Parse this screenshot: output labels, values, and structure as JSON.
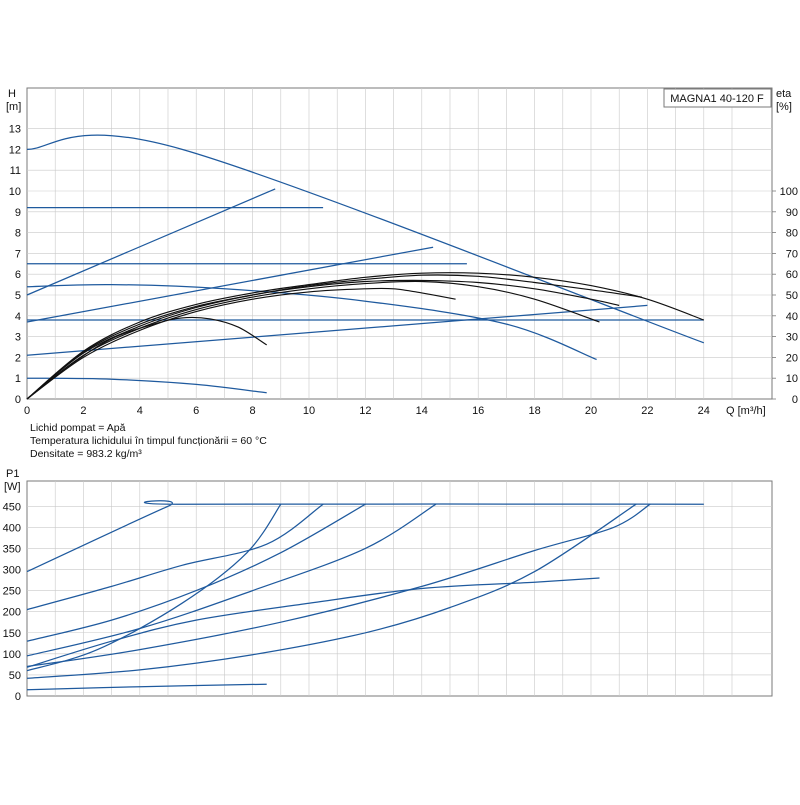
{
  "title": "MAGNA1 40-120 F",
  "notes": [
    "Lichid pompat = Apă",
    "Temperatura lichidului în timpul funcționării = 60 °C",
    "Densitate = 983.2 kg/m³"
  ],
  "colors": {
    "blue": "#1f5a9e",
    "black": "#111111",
    "grid": "#c9c9c9",
    "frame": "#7a7a7a"
  },
  "chart_data": [
    {
      "id": "head",
      "type": "line",
      "x_unit_label": "Q [m³/h]",
      "y_label_line1": "H",
      "y_label_line2": "[m]",
      "y2_label_line1": "eta",
      "y2_label_line2": "[%]",
      "xlim": [
        0,
        26
      ],
      "ylim": [
        0,
        13.5
      ],
      "x_ticks": [
        0,
        2,
        4,
        6,
        8,
        10,
        12,
        14,
        16,
        18,
        20,
        22,
        24
      ],
      "y_ticks": [
        0,
        1,
        2,
        3,
        4,
        5,
        6,
        7,
        8,
        9,
        10,
        11,
        12,
        13
      ],
      "y2_ticks": [
        0,
        10,
        20,
        30,
        40,
        50,
        60,
        70,
        80,
        90,
        100
      ],
      "y2_lim": [
        0,
        135
      ],
      "series": [
        {
          "kind": "head",
          "color": "blue",
          "points": [
            [
              0,
              12
            ],
            [
              5.5,
              12
            ],
            [
              24,
              2.7
            ]
          ]
        },
        {
          "kind": "head",
          "color": "blue",
          "points": [
            [
              0,
              9.2
            ],
            [
              10.5,
              9.2
            ]
          ]
        },
        {
          "kind": "head",
          "color": "blue",
          "points": [
            [
              0,
              6.5
            ],
            [
              15.6,
              6.5
            ]
          ]
        },
        {
          "kind": "head",
          "color": "blue",
          "points": [
            [
              0,
              5.4
            ],
            [
              3,
              5.5
            ],
            [
              7,
              5.3
            ],
            [
              12,
              4.7
            ],
            [
              17,
              3.6
            ],
            [
              20.2,
              1.9
            ]
          ]
        },
        {
          "kind": "head",
          "color": "blue",
          "points": [
            [
              0,
              3.8
            ],
            [
              24,
              3.8
            ]
          ]
        },
        {
          "kind": "head",
          "color": "blue",
          "points": [
            [
              0,
              1.0
            ],
            [
              3,
              0.95
            ],
            [
              6,
              0.7
            ],
            [
              8.5,
              0.3
            ]
          ]
        },
        {
          "kind": "system",
          "color": "blue",
          "points": [
            [
              0,
              5
            ],
            [
              8.8,
              10.1
            ]
          ]
        },
        {
          "kind": "system",
          "color": "blue",
          "points": [
            [
              0,
              3.7
            ],
            [
              14.4,
              7.3
            ]
          ]
        },
        {
          "kind": "system",
          "color": "blue",
          "points": [
            [
              0,
              2.1
            ],
            [
              22,
              4.5
            ]
          ]
        },
        {
          "kind": "efficiency",
          "color": "black",
          "points": [
            [
              0,
              0
            ],
            [
              2,
              2.3
            ],
            [
              4,
              3.7
            ],
            [
              6,
              4.55
            ],
            [
              8,
              5.1
            ],
            [
              10,
              5.5
            ],
            [
              12,
              5.85
            ],
            [
              14,
              6.05
            ],
            [
              16,
              6.05
            ],
            [
              18,
              5.85
            ],
            [
              20,
              5.45
            ],
            [
              22,
              4.8
            ],
            [
              24,
              3.8
            ]
          ]
        },
        {
          "kind": "efficiency",
          "color": "black",
          "points": [
            [
              0,
              0
            ],
            [
              2,
              2.25
            ],
            [
              4,
              3.6
            ],
            [
              6,
              4.45
            ],
            [
              8,
              5.0
            ],
            [
              10,
              5.45
            ],
            [
              12,
              5.75
            ],
            [
              14,
              5.95
            ],
            [
              16,
              5.9
            ],
            [
              18,
              5.6
            ],
            [
              20,
              5.25
            ],
            [
              21.8,
              4.9
            ]
          ]
        },
        {
          "kind": "efficiency",
          "color": "black",
          "points": [
            [
              0,
              0
            ],
            [
              2,
              2.2
            ],
            [
              4,
              3.5
            ],
            [
              6,
              4.4
            ],
            [
              8,
              5.0
            ],
            [
              10,
              5.4
            ],
            [
              12,
              5.65
            ],
            [
              14,
              5.7
            ],
            [
              16,
              5.6
            ],
            [
              18,
              5.3
            ],
            [
              20,
              4.8
            ],
            [
              21,
              4.5
            ]
          ]
        },
        {
          "kind": "efficiency",
          "color": "black",
          "points": [
            [
              0,
              0
            ],
            [
              2,
              2.1
            ],
            [
              4,
              3.4
            ],
            [
              6,
              4.3
            ],
            [
              8,
              4.9
            ],
            [
              10,
              5.3
            ],
            [
              12,
              5.55
            ],
            [
              14,
              5.65
            ],
            [
              16,
              5.4
            ],
            [
              18,
              4.8
            ],
            [
              20.3,
              3.7
            ]
          ]
        },
        {
          "kind": "efficiency",
          "color": "black",
          "points": [
            [
              0,
              0
            ],
            [
              2,
              2.0
            ],
            [
              4,
              3.3
            ],
            [
              6,
              4.2
            ],
            [
              8,
              4.8
            ],
            [
              10,
              5.15
            ],
            [
              12,
              5.3
            ],
            [
              13,
              5.3
            ],
            [
              14,
              5.1
            ],
            [
              15.2,
              4.8
            ]
          ]
        },
        {
          "kind": "efficiency",
          "color": "black",
          "points": [
            [
              0,
              0
            ],
            [
              1.5,
              1.6
            ],
            [
              3,
              2.9
            ],
            [
              4.5,
              3.6
            ],
            [
              5.5,
              3.9
            ],
            [
              6.5,
              3.85
            ],
            [
              7.5,
              3.45
            ],
            [
              8.5,
              2.6
            ]
          ]
        }
      ]
    },
    {
      "id": "power",
      "type": "line",
      "y_label_line1": "P1",
      "y_label_line2": "[W]",
      "xlim": [
        0,
        26
      ],
      "ylim": [
        0,
        490
      ],
      "x_ticks": [
        0,
        2,
        4,
        6,
        8,
        10,
        12,
        14,
        16,
        18,
        20,
        22,
        24
      ],
      "y_ticks": [
        0,
        50,
        100,
        150,
        200,
        250,
        300,
        350,
        400,
        450
      ],
      "series": [
        {
          "color": "blue",
          "points": [
            [
              0,
              295
            ],
            [
              5,
              450
            ],
            [
              5.5,
              455
            ],
            [
              24,
              455
            ]
          ]
        },
        {
          "color": "blue",
          "points": [
            [
              0,
              205
            ],
            [
              3,
              260
            ],
            [
              5.5,
              310
            ],
            [
              8.5,
              360
            ],
            [
              10.5,
              455
            ]
          ]
        },
        {
          "color": "blue",
          "points": [
            [
              0,
              130
            ],
            [
              3,
              180
            ],
            [
              6,
              250
            ],
            [
              9,
              340
            ],
            [
              12,
              455
            ]
          ]
        },
        {
          "color": "blue",
          "points": [
            [
              0,
              95
            ],
            [
              4,
              160
            ],
            [
              8,
              250
            ],
            [
              12,
              350
            ],
            [
              14.5,
              455
            ]
          ]
        },
        {
          "color": "blue",
          "points": [
            [
              0,
              60
            ],
            [
              2.5,
              110
            ],
            [
              5.5,
              220
            ],
            [
              7.8,
              340
            ],
            [
              9,
              455
            ]
          ]
        },
        {
          "color": "blue",
          "points": [
            [
              0,
              70
            ],
            [
              4,
              110
            ],
            [
              9,
              175
            ],
            [
              14,
              260
            ],
            [
              18,
              345
            ],
            [
              20.8,
              400
            ],
            [
              22.1,
              455
            ]
          ]
        },
        {
          "color": "blue",
          "points": [
            [
              0,
              68
            ],
            [
              3,
              130
            ],
            [
              6,
              180
            ],
            [
              10,
              220
            ],
            [
              14,
              255
            ],
            [
              18,
              270
            ],
            [
              20.3,
              280
            ]
          ]
        },
        {
          "color": "blue",
          "points": [
            [
              0,
              42
            ],
            [
              4,
              62
            ],
            [
              8,
              98
            ],
            [
              12,
              150
            ],
            [
              15,
              210
            ],
            [
              18,
              295
            ],
            [
              21.6,
              455
            ]
          ]
        },
        {
          "color": "blue",
          "points": [
            [
              0,
              15
            ],
            [
              4,
              22
            ],
            [
              8.5,
              28
            ]
          ]
        }
      ]
    }
  ]
}
